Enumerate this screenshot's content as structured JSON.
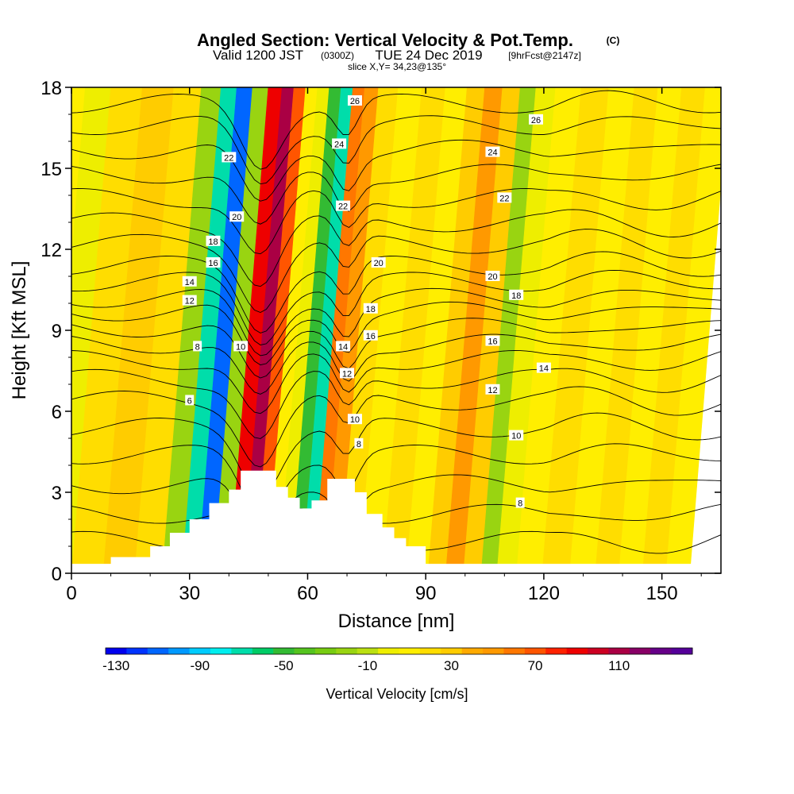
{
  "chart_data": {
    "type": "heatmap",
    "title": "Angled Section: Vertical Velocity & Pot.Temp.",
    "title_suffix": "(C)",
    "subtitle": {
      "part1": "Valid 1200 JST",
      "part2": "(0300Z)",
      "part3": "TUE 24 Dec 2019",
      "part4": "[9hrFcst@2147z]"
    },
    "subtitle2": "slice X,Y= 34,23@135°",
    "xlabel": "Distance [nm]",
    "ylabel": "Height [Kft MSL]",
    "xlim": [
      0,
      165
    ],
    "ylim": [
      0,
      18
    ],
    "x_ticks": [
      "0",
      "30",
      "60",
      "90",
      "120",
      "150"
    ],
    "y_ticks": [
      "0",
      "3",
      "6",
      "9",
      "12",
      "15",
      "18"
    ],
    "colorbar": {
      "title": "Vertical Velocity [cm/s]",
      "labels": [
        "-130",
        "-90",
        "-50",
        "-10",
        "30",
        "70",
        "110"
      ],
      "colors": [
        "#0000ee",
        "#0033ff",
        "#0066ff",
        "#0099ff",
        "#00ccff",
        "#00eeee",
        "#00ddaa",
        "#00cc66",
        "#33bb33",
        "#55c41f",
        "#77cc11",
        "#99d411",
        "#bbe011",
        "#eeee00",
        "#ffee00",
        "#ffdd00",
        "#ffcc00",
        "#ffaa00",
        "#ff9900",
        "#ff7700",
        "#ff5500",
        "#ff2200",
        "#ee0000",
        "#cc0022",
        "#aa0044",
        "#880066",
        "#660088",
        "#550099"
      ]
    },
    "terrain": [
      [
        10,
        0.6
      ],
      [
        20,
        1.0
      ],
      [
        25,
        1.5
      ],
      [
        30,
        2.0
      ],
      [
        35,
        2.6
      ],
      [
        40,
        3.1
      ],
      [
        43,
        3.8
      ],
      [
        50,
        3.8
      ],
      [
        52,
        3.2
      ],
      [
        55,
        2.8
      ],
      [
        58,
        2.4
      ],
      [
        61,
        2.7
      ],
      [
        65,
        3.5
      ],
      [
        70,
        3.5
      ],
      [
        72,
        3.0
      ],
      [
        75,
        2.2
      ],
      [
        79,
        1.7
      ],
      [
        82,
        1.3
      ],
      [
        85,
        1.0
      ],
      [
        90,
        0.6
      ]
    ],
    "bands": [
      {
        "x": 1,
        "value": 0
      },
      {
        "x": 6,
        "value": -10
      },
      {
        "x": 14,
        "value": 15
      },
      {
        "x": 22,
        "value": 20
      },
      {
        "x": 30,
        "value": 15
      },
      {
        "x": 36,
        "value": -30
      },
      {
        "x": 40,
        "value": -75
      },
      {
        "x": 44,
        "value": -120
      },
      {
        "x": 48,
        "value": -30
      },
      {
        "x": 52,
        "value": 80
      },
      {
        "x": 55,
        "value": 100
      },
      {
        "x": 58,
        "value": 60
      },
      {
        "x": 61,
        "value": 5
      },
      {
        "x": 64,
        "value": -10
      },
      {
        "x": 67,
        "value": -60
      },
      {
        "x": 70,
        "value": -80
      },
      {
        "x": 73,
        "value": 50
      },
      {
        "x": 76,
        "value": 40
      },
      {
        "x": 80,
        "value": 10
      },
      {
        "x": 86,
        "value": 0
      },
      {
        "x": 92,
        "value": 10
      },
      {
        "x": 98,
        "value": 0
      },
      {
        "x": 103,
        "value": 20
      },
      {
        "x": 107,
        "value": 40
      },
      {
        "x": 112,
        "value": 20
      },
      {
        "x": 116,
        "value": -25
      },
      {
        "x": 120,
        "value": -10
      },
      {
        "x": 126,
        "value": 0
      },
      {
        "x": 133,
        "value": 10
      },
      {
        "x": 140,
        "value": 0
      },
      {
        "x": 146,
        "value": 15
      },
      {
        "x": 152,
        "value": 0
      },
      {
        "x": 158,
        "value": 10
      },
      {
        "x": 164,
        "value": 0
      }
    ],
    "contour_labels": [
      {
        "text": "26",
        "x": 72,
        "y": 17.5
      },
      {
        "text": "26",
        "x": 118,
        "y": 16.8
      },
      {
        "text": "24",
        "x": 68,
        "y": 15.9
      },
      {
        "text": "24",
        "x": 107,
        "y": 15.6
      },
      {
        "text": "22",
        "x": 40,
        "y": 15.4
      },
      {
        "text": "22",
        "x": 69,
        "y": 13.6
      },
      {
        "text": "22",
        "x": 110,
        "y": 13.9
      },
      {
        "text": "20",
        "x": 42,
        "y": 13.2
      },
      {
        "text": "20",
        "x": 78,
        "y": 11.5
      },
      {
        "text": "20",
        "x": 107,
        "y": 11.0
      },
      {
        "text": "18",
        "x": 36,
        "y": 12.3
      },
      {
        "text": "18",
        "x": 76,
        "y": 9.8
      },
      {
        "text": "18",
        "x": 113,
        "y": 10.3
      },
      {
        "text": "16",
        "x": 36,
        "y": 11.5
      },
      {
        "text": "16",
        "x": 76,
        "y": 8.8
      },
      {
        "text": "16",
        "x": 107,
        "y": 8.6
      },
      {
        "text": "14",
        "x": 30,
        "y": 10.8
      },
      {
        "text": "14",
        "x": 69,
        "y": 8.4
      },
      {
        "text": "14",
        "x": 120,
        "y": 7.6
      },
      {
        "text": "12",
        "x": 30,
        "y": 10.1
      },
      {
        "text": "12",
        "x": 70,
        "y": 7.4
      },
      {
        "text": "12",
        "x": 107,
        "y": 6.8
      },
      {
        "text": "10",
        "x": 43,
        "y": 8.4
      },
      {
        "text": "10",
        "x": 72,
        "y": 5.7
      },
      {
        "text": "10",
        "x": 113,
        "y": 5.1
      },
      {
        "text": "8",
        "x": 32,
        "y": 8.4
      },
      {
        "text": "8",
        "x": 73,
        "y": 4.8
      },
      {
        "text": "8",
        "x": 114,
        "y": 2.6
      },
      {
        "text": "6",
        "x": 30,
        "y": 6.4
      }
    ]
  }
}
